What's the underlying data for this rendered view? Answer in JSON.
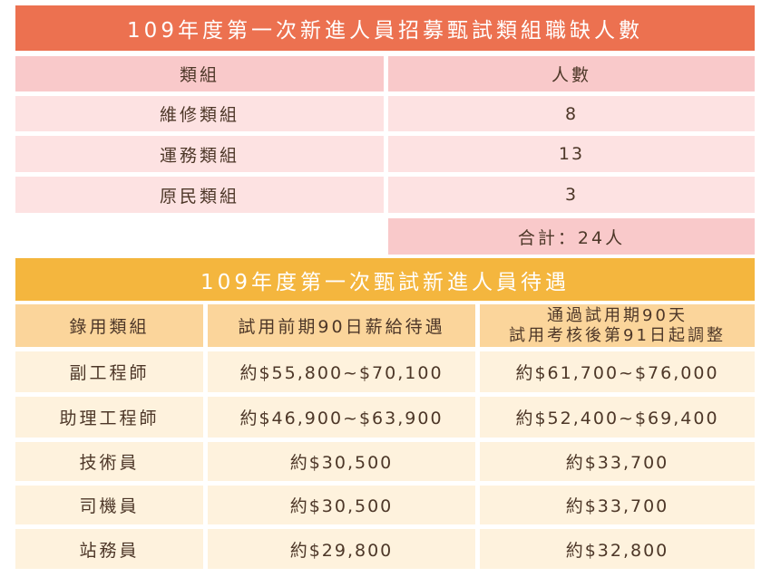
{
  "table1": {
    "title": "109年度第一次新進人員招募甄試類組職缺人數",
    "headers": [
      "類組",
      "人數"
    ],
    "rows": [
      [
        "維修類組",
        "8"
      ],
      [
        "運務類組",
        "13"
      ],
      [
        "原民類組",
        "3"
      ]
    ],
    "total": "合計：24人"
  },
  "table2": {
    "title": "109年度第一次甄試新進人員待遇",
    "headers": {
      "col1": "錄用類組",
      "col2": "試用前期90日薪給待遇",
      "col3_line1": "通過試用期90天",
      "col3_line2": "試用考核後第91日起調整"
    },
    "rows": [
      [
        "副工程師",
        "約$55,800~$70,100",
        "約$61,700~$76,000"
      ],
      [
        "助理工程師",
        "約$46,900~$63,900",
        "約$52,400~$69,400"
      ],
      [
        "技術員",
        "約$30,500",
        "約$33,700"
      ],
      [
        "司機員",
        "約$30,500",
        "約$33,700"
      ],
      [
        "站務員",
        "約$29,800",
        "約$32,800"
      ]
    ]
  },
  "colors": {
    "title1_bg": "#ec7150",
    "title2_bg": "#f4b63e",
    "table1_header_bg": "#f9c9ca",
    "table1_row_bg": "#fde2e2",
    "table2_header_bg": "#fbd59b",
    "table2_row_bg": "#fef2dd"
  }
}
